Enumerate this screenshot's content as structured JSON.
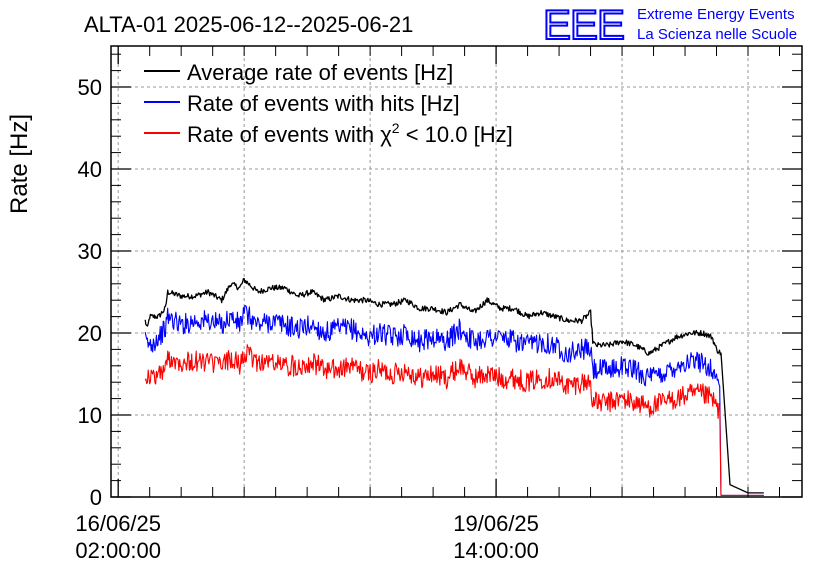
{
  "header": {
    "title": "ALTA-01 2025-06-12--2025-06-21",
    "logo_text": "EEE",
    "logo_line1": "Extreme Energy Events",
    "logo_line2": "La Scienza nelle Scuole",
    "logo_color": "#0000ff"
  },
  "chart_data": {
    "type": "line",
    "title": "ALTA-01 2025-06-12--2025-06-21",
    "ylabel": "Rate [Hz]",
    "xlabel": "",
    "ylim": [
      0,
      55
    ],
    "xlim_hours": [
      -1.6,
      152
    ],
    "grid": true,
    "legend_position": "top-left",
    "y_ticks": [
      0,
      10,
      20,
      30,
      40,
      50
    ],
    "x_ticks": [
      {
        "hours": 0,
        "date": "16/06/25",
        "time": "02:00:00"
      },
      {
        "hours": 84,
        "date": "19/06/25",
        "time": "14:00:00"
      }
    ],
    "series": [
      {
        "name": "Average rate of events [Hz]",
        "color": "#000000",
        "x_hours": [
          6,
          6.5,
          7,
          9,
          10.5,
          11,
          14,
          17,
          20,
          23,
          25,
          27,
          28,
          31,
          34,
          37,
          40,
          43,
          46,
          49,
          52,
          55,
          58,
          61,
          64,
          67,
          70,
          73,
          76,
          79,
          82,
          85,
          88,
          91,
          94,
          97,
          100,
          103,
          105,
          105.5,
          106,
          109,
          112,
          115,
          118,
          121,
          124,
          127,
          130,
          132,
          133,
          134,
          136,
          140,
          143.5
        ],
        "values": [
          21.5,
          20.5,
          22,
          22,
          23,
          25,
          24.5,
          24.5,
          25,
          24,
          26,
          25.5,
          26.5,
          25,
          25.5,
          25.5,
          24.5,
          25,
          24,
          24.5,
          24,
          24,
          23.5,
          23.5,
          24,
          23,
          23,
          22.5,
          23.5,
          22.5,
          24,
          23,
          23,
          22,
          22.5,
          22,
          21.5,
          21.5,
          22.5,
          19,
          18.5,
          18.5,
          19,
          18.5,
          17.5,
          18.5,
          19.5,
          20,
          20,
          19.5,
          18,
          17.5,
          1.5,
          0.5,
          0.5
        ]
      },
      {
        "name": "Rate of events with hits [Hz]",
        "color": "#0000ff",
        "x_hours": [
          6,
          7,
          9,
          10.5,
          11,
          14,
          17,
          20,
          23,
          25,
          27,
          28,
          31,
          34,
          37,
          40,
          43,
          46,
          49,
          52,
          55,
          58,
          61,
          64,
          67,
          70,
          73,
          76,
          79,
          82,
          85,
          88,
          91,
          94,
          97,
          100,
          103,
          105,
          105.5,
          106,
          109,
          112,
          115,
          118,
          121,
          124,
          127,
          130,
          132,
          133,
          133.7,
          134,
          143.5
        ],
        "values": [
          19,
          18.5,
          19.5,
          20.5,
          22,
          21,
          21.5,
          21.5,
          21,
          22,
          21,
          22.5,
          21,
          21.5,
          21,
          20.5,
          21,
          20,
          20.5,
          20.5,
          19.5,
          20,
          19.5,
          20,
          19,
          19.5,
          19,
          20.5,
          19,
          19.5,
          19.5,
          19,
          18.5,
          19,
          18.5,
          17.5,
          18,
          18,
          15.5,
          15.5,
          15.5,
          16,
          15.5,
          14.5,
          15,
          16,
          16.5,
          16.5,
          15.5,
          14.5,
          13.5,
          0.2,
          0.2
        ]
      },
      {
        "name": "Rate of events with χ2 < 10.0 [Hz]",
        "color": "#ff0000",
        "x_hours": [
          6,
          7,
          9,
          10.5,
          11,
          14,
          17,
          20,
          23,
          25,
          27,
          28,
          31,
          34,
          37,
          40,
          43,
          46,
          49,
          52,
          55,
          58,
          61,
          64,
          67,
          70,
          73,
          76,
          79,
          82,
          85,
          88,
          91,
          94,
          97,
          100,
          103,
          105,
          105.5,
          106,
          109,
          112,
          115,
          118,
          121,
          124,
          127,
          130,
          132,
          133,
          133.7,
          134,
          143.5
        ],
        "values": [
          15,
          14.5,
          15,
          15.5,
          17,
          16.5,
          16.5,
          16.5,
          16,
          17,
          16,
          17.5,
          16.5,
          16.5,
          16,
          16,
          16.5,
          15.5,
          15.5,
          16,
          15,
          15.5,
          15,
          15.5,
          14.5,
          15,
          14.5,
          16,
          14.5,
          15,
          14.5,
          14.5,
          14,
          14.5,
          14.5,
          13.5,
          14,
          14,
          11.5,
          11.5,
          11.5,
          12,
          11.5,
          11,
          11.5,
          12,
          12.5,
          12.5,
          12,
          11,
          10.5,
          0.2,
          0.2
        ]
      }
    ]
  },
  "legend": {
    "item1": "Average rate of events [Hz]",
    "item2": "Rate of events with hits [Hz]",
    "item3_prefix": "Rate of events with ",
    "item3_chi": "χ",
    "item3_sup": "2",
    "item3_suffix": " < 10.0 [Hz]"
  }
}
